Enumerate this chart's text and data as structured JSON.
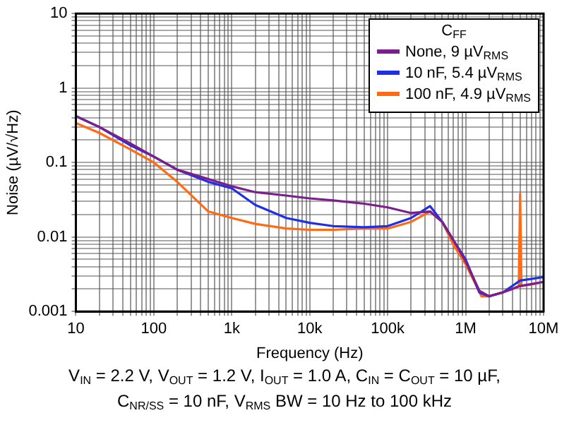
{
  "chart_data": {
    "type": "line",
    "xlabel": "Frequency (Hz)",
    "ylabel": "Noise (µV/√Hz)",
    "legend_title": "C$_{FF}$",
    "legend": "top right",
    "grid": true,
    "log": "xy",
    "marker": "none",
    "line_style": "solid",
    "xlim": [
      10,
      10000000
    ],
    "ylim": [
      0.001,
      10
    ],
    "xticks": [
      {
        "value": 10,
        "label": "10"
      },
      {
        "value": 20,
        "label": null
      },
      {
        "value": 30,
        "label": null
      },
      {
        "value": 40,
        "label": null
      },
      {
        "value": 50,
        "label": null
      },
      {
        "value": 60,
        "label": null
      },
      {
        "value": 70,
        "label": null
      },
      {
        "value": 80,
        "label": null
      },
      {
        "value": 90,
        "label": null
      },
      {
        "value": 100,
        "label": "100"
      },
      {
        "value": 200,
        "label": null
      },
      {
        "value": 300,
        "label": null
      },
      {
        "value": 400,
        "label": null
      },
      {
        "value": 500,
        "label": null
      },
      {
        "value": 600,
        "label": null
      },
      {
        "value": 700,
        "label": null
      },
      {
        "value": 800,
        "label": null
      },
      {
        "value": 900,
        "label": null
      },
      {
        "value": 1000,
        "label": "1k"
      },
      {
        "value": 2000,
        "label": null
      },
      {
        "value": 3000,
        "label": null
      },
      {
        "value": 4000,
        "label": null
      },
      {
        "value": 5000,
        "label": null
      },
      {
        "value": 6000,
        "label": null
      },
      {
        "value": 7000,
        "label": null
      },
      {
        "value": 8000,
        "label": null
      },
      {
        "value": 9000,
        "label": null
      },
      {
        "value": 10000,
        "label": "10k"
      },
      {
        "value": 20000,
        "label": null
      },
      {
        "value": 30000,
        "label": null
      },
      {
        "value": 40000,
        "label": null
      },
      {
        "value": 50000,
        "label": null
      },
      {
        "value": 60000,
        "label": null
      },
      {
        "value": 70000,
        "label": null
      },
      {
        "value": 80000,
        "label": null
      },
      {
        "value": 90000,
        "label": null
      },
      {
        "value": 100000,
        "label": "100k"
      },
      {
        "value": 200000,
        "label": null
      },
      {
        "value": 300000,
        "label": null
      },
      {
        "value": 400000,
        "label": null
      },
      {
        "value": 500000,
        "label": null
      },
      {
        "value": 600000,
        "label": null
      },
      {
        "value": 700000,
        "label": null
      },
      {
        "value": 800000,
        "label": null
      },
      {
        "value": 900000,
        "label": null
      },
      {
        "value": 1000000,
        "label": "1M"
      },
      {
        "value": 2000000,
        "label": null
      },
      {
        "value": 3000000,
        "label": null
      },
      {
        "value": 4000000,
        "label": null
      },
      {
        "value": 5000000,
        "label": null
      },
      {
        "value": 6000000,
        "label": null
      },
      {
        "value": 7000000,
        "label": null
      },
      {
        "value": 8000000,
        "label": null
      },
      {
        "value": 9000000,
        "label": null
      },
      {
        "value": 10000000,
        "label": "10M"
      }
    ],
    "yticks": [
      0.001,
      {
        "value": 0.002,
        "label": null
      },
      {
        "value": 0.003,
        "label": null
      },
      {
        "value": 0.004,
        "label": null
      },
      {
        "value": 0.005,
        "label": null
      },
      {
        "value": 0.006,
        "label": null
      },
      {
        "value": 0.007,
        "label": null
      },
      {
        "value": 0.008,
        "label": null
      },
      {
        "value": 0.009,
        "label": null
      },
      0.01,
      {
        "value": 0.02,
        "label": null
      },
      {
        "value": 0.03,
        "label": null
      },
      {
        "value": 0.04,
        "label": null
      },
      {
        "value": 0.05,
        "label": null
      },
      {
        "value": 0.06,
        "label": null
      },
      {
        "value": 0.07,
        "label": null
      },
      {
        "value": 0.08,
        "label": null
      },
      {
        "value": 0.09,
        "label": null
      },
      0.1,
      {
        "value": 0.2,
        "label": null
      },
      {
        "value": 0.3,
        "label": null
      },
      {
        "value": 0.4,
        "label": null
      },
      {
        "value": 0.5,
        "label": null
      },
      {
        "value": 0.6,
        "label": null
      },
      {
        "value": 0.7,
        "label": null
      },
      {
        "value": 0.8,
        "label": null
      },
      {
        "value": 0.9,
        "label": null
      },
      1,
      {
        "value": 2,
        "label": null
      },
      {
        "value": 3,
        "label": null
      },
      {
        "value": 4,
        "label": null
      },
      {
        "value": 5,
        "label": null
      },
      {
        "value": 6,
        "label": null
      },
      {
        "value": 7,
        "label": null
      },
      {
        "value": 8,
        "label": null
      },
      {
        "value": 9,
        "label": null
      },
      10
    ],
    "series": [
      {
        "name": "None, 9 µV$_{RMS}$",
        "color": "#7b1f8c",
        "x": [
          10,
          20,
          50,
          100,
          200,
          500,
          1000,
          2000,
          5000,
          10000,
          20000,
          50000,
          100000,
          200000,
          350000,
          500000,
          700000,
          1000000,
          1500000,
          2000000,
          3000000,
          5000000,
          10000000
        ],
        "values": [
          0.42,
          0.3,
          0.18,
          0.12,
          0.08,
          0.06,
          0.048,
          0.04,
          0.036,
          0.033,
          0.031,
          0.028,
          0.025,
          0.021,
          0.022,
          0.016,
          0.009,
          0.0047,
          0.0019,
          0.0016,
          0.0018,
          0.0022,
          0.0025
        ]
      },
      {
        "name": "10 nF, 5.4 µV$_{RMS}$",
        "color": "#1f2fe8",
        "x": [
          10,
          20,
          50,
          100,
          200,
          500,
          1000,
          2000,
          5000,
          10000,
          20000,
          50000,
          100000,
          200000,
          350000,
          500000,
          700000,
          1000000,
          1500000,
          2000000,
          3000000,
          5000000,
          10000000
        ],
        "values": [
          0.42,
          0.3,
          0.17,
          0.12,
          0.08,
          0.055,
          0.045,
          0.027,
          0.018,
          0.0155,
          0.014,
          0.0135,
          0.014,
          0.018,
          0.026,
          0.016,
          0.009,
          0.005,
          0.0018,
          0.0016,
          0.0018,
          0.0026,
          0.0029
        ]
      },
      {
        "name": "100 nF, 4.9  µV$_{RMS}$",
        "color": "#ff6a13",
        "x": [
          10,
          20,
          50,
          100,
          200,
          500,
          1000,
          2000,
          5000,
          10000,
          20000,
          50000,
          100000,
          200000,
          350000,
          500000,
          700000,
          1000000,
          1600000,
          2000000,
          4000000,
          4800000,
          5000000,
          5200000,
          7000000,
          10000000
        ],
        "values": [
          0.34,
          0.25,
          0.15,
          0.1,
          0.055,
          0.022,
          0.018,
          0.015,
          0.013,
          0.0125,
          0.0125,
          0.013,
          0.013,
          0.016,
          0.022,
          0.016,
          0.0078,
          0.0043,
          0.0016,
          0.0016,
          0.002,
          0.0022,
          0.038,
          0.0022,
          0.0023,
          0.0025
        ]
      }
    ],
    "annotations": [
      "V$_{IN}$ = 2.2 V, V$_{OUT}$ = 1.2 V, I$_{OUT}$ = 1.0 A, C$_{IN}$ = C$_{OUT}$ = 10 µF,",
      "C$_{NR/SS}$ = 10 nF, V$_{RMS}$ BW = 10 Hz to 100 kHz"
    ]
  }
}
